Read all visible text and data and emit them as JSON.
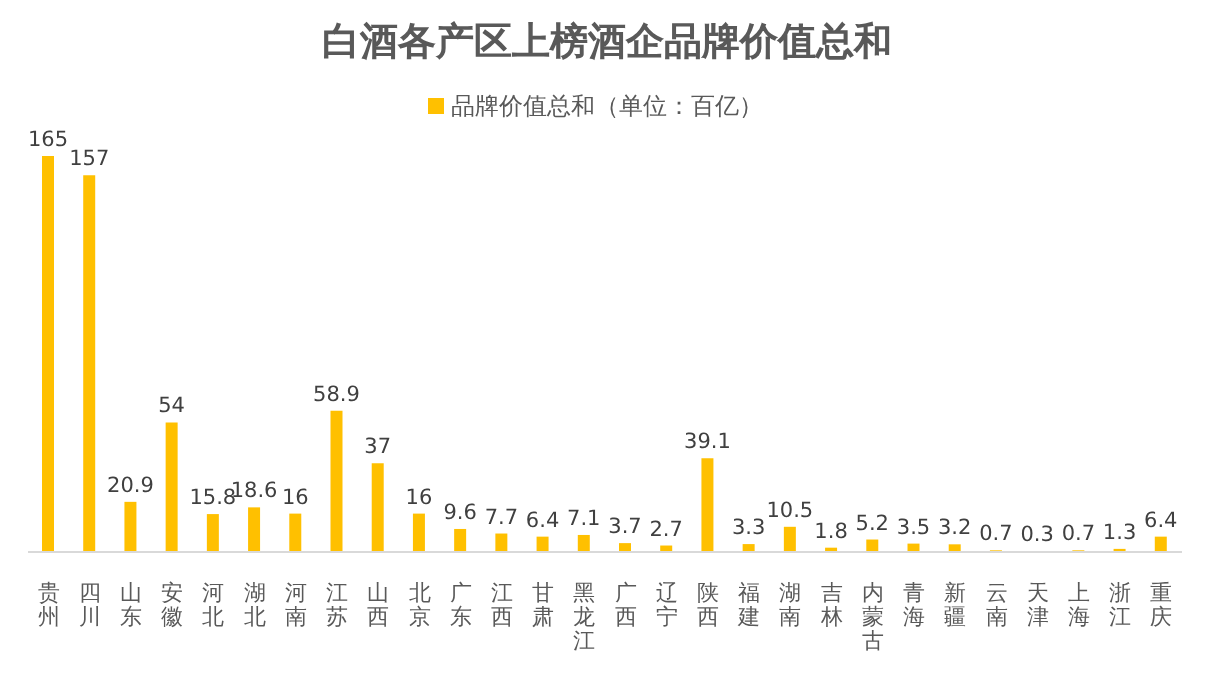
{
  "chart_data": {
    "type": "bar",
    "title": "白酒各产区上榜酒企品牌价值总和",
    "categories": [
      "贵州",
      "四川",
      "山东",
      "安徽",
      "河北",
      "湖北",
      "河南",
      "江苏",
      "山西",
      "北京",
      "广东",
      "江西",
      "甘肃",
      "黑龙江",
      "广西",
      "辽宁",
      "陕西",
      "福建",
      "湖南",
      "吉林",
      "内蒙古",
      "青海",
      "新疆",
      "云南",
      "天津",
      "上海",
      "浙江",
      "重庆"
    ],
    "series": [
      {
        "name": "品牌价值总和（单位：百亿）",
        "color": "#ffc000",
        "values": [
          165,
          157,
          20.9,
          54,
          15.8,
          18.6,
          16,
          58.9,
          37,
          16,
          9.6,
          7.7,
          6.4,
          7.1,
          3.7,
          2.7,
          39.1,
          3.3,
          10.5,
          1.8,
          5.2,
          3.5,
          3.2,
          0.7,
          0.3,
          0.7,
          1.3,
          6.4
        ]
      }
    ],
    "data_labels": true,
    "legend": "top",
    "grid": false
  }
}
